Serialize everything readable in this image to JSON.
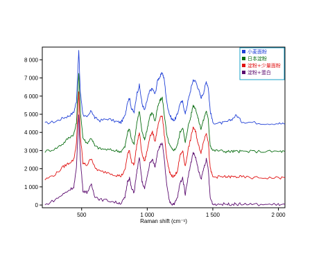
{
  "chart_data": {
    "type": "line",
    "title": "",
    "xlabel": "Raman shift (cm⁻¹)",
    "ylabel": "",
    "xlim": [
      200,
      2050
    ],
    "ylim": [
      -150,
      8700
    ],
    "x_ticks": [
      500,
      1000,
      1500,
      2000
    ],
    "x_tick_labels": [
      "500",
      "1 000",
      "1 500",
      "2 000"
    ],
    "y_ticks": [
      0,
      1000,
      2000,
      3000,
      4000,
      5000,
      6000,
      7000,
      8000
    ],
    "y_tick_labels": [
      "0",
      "1 000",
      "2 000",
      "3 000",
      "4 000",
      "5 000",
      "6 000",
      "7 000",
      "8 000"
    ],
    "grid": false,
    "legend_position": "top-right",
    "series": [
      {
        "name": "小麦面粉",
        "color": "#1f3fd6",
        "x": [
          220,
          300,
          360,
          400,
          440,
          460,
          478,
          490,
          510,
          540,
          575,
          600,
          640,
          700,
          760,
          800,
          830,
          850,
          865,
          880,
          900,
          920,
          940,
          960,
          980,
          1000,
          1020,
          1040,
          1060,
          1080,
          1100,
          1115,
          1130,
          1150,
          1170,
          1190,
          1210,
          1230,
          1250,
          1270,
          1290,
          1310,
          1330,
          1350,
          1370,
          1390,
          1410,
          1430,
          1450,
          1465,
          1480,
          1500,
          1550,
          1600,
          1640,
          1680,
          1720,
          1800,
          1900,
          2000,
          2050
        ],
        "values": [
          4500,
          4600,
          4800,
          4900,
          5100,
          5700,
          8500,
          6200,
          5000,
          4800,
          5200,
          4800,
          4650,
          4750,
          4600,
          4550,
          4900,
          5700,
          5900,
          5300,
          5100,
          6100,
          6600,
          5600,
          5200,
          5800,
          6300,
          6400,
          6100,
          6900,
          7100,
          7300,
          6900,
          5600,
          5000,
          4700,
          4700,
          5000,
          5600,
          5700,
          5000,
          5700,
          6300,
          6900,
          6800,
          6400,
          5900,
          6200,
          6800,
          6500,
          5200,
          4550,
          4500,
          4550,
          4700,
          4950,
          4600,
          4550,
          4500,
          4500,
          4450
        ]
      },
      {
        "name": "日本淀粉",
        "color": "#0a6e12",
        "x": [
          220,
          300,
          360,
          400,
          440,
          460,
          478,
          490,
          510,
          540,
          575,
          600,
          640,
          700,
          760,
          800,
          830,
          850,
          865,
          880,
          900,
          920,
          940,
          960,
          980,
          1000,
          1020,
          1040,
          1060,
          1080,
          1100,
          1115,
          1130,
          1150,
          1170,
          1190,
          1210,
          1230,
          1250,
          1270,
          1290,
          1310,
          1330,
          1350,
          1370,
          1390,
          1410,
          1430,
          1450,
          1465,
          1480,
          1500,
          1550,
          1600,
          1640,
          1680,
          1720,
          1800,
          1900,
          2000,
          2050
        ],
        "values": [
          2950,
          3100,
          3400,
          3700,
          3900,
          4500,
          7300,
          5200,
          3700,
          3400,
          3700,
          3250,
          3100,
          3050,
          3000,
          2950,
          3200,
          4000,
          4200,
          3600,
          3400,
          4500,
          5200,
          4000,
          3600,
          4200,
          4900,
          5100,
          4600,
          5400,
          5800,
          5900,
          5000,
          3800,
          3300,
          3050,
          3050,
          3300,
          4000,
          4300,
          3400,
          4300,
          4800,
          5500,
          5300,
          4700,
          4200,
          4700,
          5200,
          4700,
          3300,
          3000,
          3000,
          2950,
          2950,
          2950,
          2950,
          2950,
          2950,
          2950,
          2950
        ]
      },
      {
        "name": "淀粉+少量面粉",
        "color": "#e01010",
        "x": [
          220,
          300,
          360,
          400,
          440,
          460,
          478,
          490,
          510,
          540,
          575,
          600,
          640,
          700,
          760,
          800,
          830,
          850,
          865,
          880,
          900,
          920,
          940,
          960,
          980,
          1000,
          1020,
          1040,
          1060,
          1080,
          1100,
          1115,
          1130,
          1150,
          1170,
          1190,
          1210,
          1230,
          1250,
          1270,
          1290,
          1310,
          1330,
          1350,
          1370,
          1390,
          1410,
          1430,
          1450,
          1465,
          1480,
          1500,
          1550,
          1600,
          1640,
          1680,
          1720,
          1800,
          1900,
          2000,
          2050
        ],
        "values": [
          1400,
          1700,
          2100,
          2300,
          2500,
          3400,
          6200,
          3800,
          2300,
          2200,
          2600,
          2050,
          1850,
          1800,
          1650,
          1600,
          1900,
          2800,
          3000,
          2400,
          2200,
          3300,
          4000,
          2800,
          2400,
          3000,
          3800,
          4000,
          3500,
          4300,
          4800,
          4900,
          3900,
          2500,
          1800,
          1600,
          1600,
          1900,
          2700,
          3000,
          2100,
          3000,
          3600,
          4300,
          4000,
          3300,
          2900,
          3500,
          4000,
          3500,
          2000,
          1550,
          1550,
          1550,
          1550,
          1550,
          1550,
          1500,
          1500,
          1500,
          1500
        ]
      },
      {
        "name": "淀粉+蛋白",
        "color": "#5a0a6e",
        "x": [
          220,
          300,
          360,
          400,
          440,
          460,
          478,
          490,
          510,
          540,
          575,
          600,
          640,
          700,
          760,
          800,
          830,
          850,
          865,
          880,
          900,
          920,
          940,
          960,
          980,
          1000,
          1020,
          1040,
          1060,
          1080,
          1100,
          1115,
          1130,
          1150,
          1170,
          1190,
          1210,
          1230,
          1250,
          1270,
          1290,
          1310,
          1330,
          1350,
          1370,
          1390,
          1410,
          1430,
          1450,
          1465,
          1480,
          1500,
          1550,
          1600,
          1640,
          1680,
          1720,
          1800,
          1900,
          2000,
          2050
        ],
        "values": [
          0,
          300,
          600,
          800,
          1000,
          2000,
          5000,
          2500,
          800,
          700,
          1100,
          500,
          300,
          250,
          150,
          100,
          400,
          1300,
          1500,
          900,
          700,
          1800,
          2600,
          1300,
          900,
          1600,
          2300,
          2500,
          2100,
          3000,
          3300,
          3400,
          2500,
          1000,
          200,
          50,
          100,
          400,
          1200,
          1500,
          600,
          1500,
          2200,
          2900,
          2600,
          1900,
          1400,
          2000,
          2500,
          2000,
          400,
          50,
          50,
          50,
          50,
          50,
          50,
          30,
          30,
          30,
          30
        ]
      }
    ]
  }
}
